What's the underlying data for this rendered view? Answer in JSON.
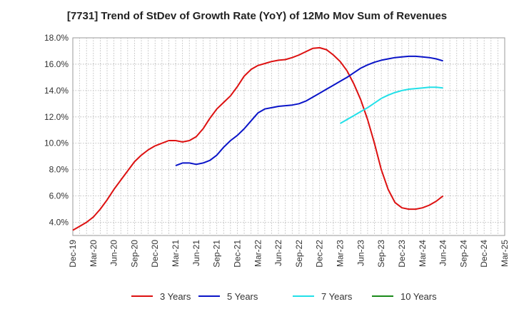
{
  "chart_data": {
    "type": "line",
    "title": "[7731]  Trend of StDev of Growth Rate (YoY) of 12Mo Mov Sum of Revenues",
    "xlabel": "",
    "ylabel": "",
    "ylim": [
      3.0,
      18.0
    ],
    "y_ticks": [
      4.0,
      6.0,
      8.0,
      10.0,
      12.0,
      14.0,
      16.0,
      18.0
    ],
    "y_tick_labels": [
      "4.0%",
      "6.0%",
      "8.0%",
      "10.0%",
      "12.0%",
      "14.0%",
      "16.0%",
      "18.0%"
    ],
    "x_tick_labels": [
      "Dec-19",
      "Mar-20",
      "Jun-20",
      "Sep-20",
      "Dec-20",
      "Mar-21",
      "Jun-21",
      "Sep-21",
      "Dec-21",
      "Mar-22",
      "Jun-22",
      "Sep-22",
      "Dec-22",
      "Mar-23",
      "Jun-23",
      "Sep-23",
      "Dec-23",
      "Mar-24",
      "Jun-24",
      "Sep-24",
      "Dec-24",
      "Mar-25"
    ],
    "grid": true,
    "legend_position": "bottom",
    "series": [
      {
        "name": "3 Years",
        "color": "#dd1111",
        "points": [
          [
            0,
            3.4
          ],
          [
            1,
            3.7
          ],
          [
            2,
            4.0
          ],
          [
            3,
            4.4
          ],
          [
            4,
            5.0
          ],
          [
            5,
            5.7
          ],
          [
            6,
            6.5
          ],
          [
            7,
            7.2
          ],
          [
            8,
            7.9
          ],
          [
            9,
            8.6
          ],
          [
            10,
            9.1
          ],
          [
            11,
            9.5
          ],
          [
            12,
            9.8
          ],
          [
            13,
            10.0
          ],
          [
            14,
            10.2
          ],
          [
            15,
            10.2
          ],
          [
            16,
            10.1
          ],
          [
            17,
            10.2
          ],
          [
            18,
            10.5
          ],
          [
            19,
            11.1
          ],
          [
            20,
            11.9
          ],
          [
            21,
            12.6
          ],
          [
            22,
            13.1
          ],
          [
            23,
            13.6
          ],
          [
            24,
            14.3
          ],
          [
            25,
            15.1
          ],
          [
            26,
            15.6
          ],
          [
            27,
            15.9
          ],
          [
            28,
            16.05
          ],
          [
            29,
            16.2
          ],
          [
            30,
            16.3
          ],
          [
            31,
            16.35
          ],
          [
            32,
            16.5
          ],
          [
            33,
            16.7
          ],
          [
            34,
            16.95
          ],
          [
            35,
            17.2
          ],
          [
            36,
            17.25
          ],
          [
            37,
            17.1
          ],
          [
            38,
            16.7
          ],
          [
            39,
            16.2
          ],
          [
            40,
            15.5
          ],
          [
            41,
            14.5
          ],
          [
            42,
            13.3
          ],
          [
            43,
            11.8
          ],
          [
            44,
            10.0
          ],
          [
            45,
            8.0
          ],
          [
            46,
            6.5
          ],
          [
            47,
            5.5
          ],
          [
            48,
            5.1
          ],
          [
            49,
            5.0
          ],
          [
            50,
            5.0
          ],
          [
            51,
            5.1
          ],
          [
            52,
            5.3
          ],
          [
            53,
            5.6
          ],
          [
            54,
            6.0
          ]
        ]
      },
      {
        "name": "5 Years",
        "color": "#0a14c8",
        "points": [
          [
            15,
            8.3
          ],
          [
            16,
            8.5
          ],
          [
            17,
            8.5
          ],
          [
            18,
            8.4
          ],
          [
            19,
            8.5
          ],
          [
            20,
            8.7
          ],
          [
            21,
            9.1
          ],
          [
            22,
            9.7
          ],
          [
            23,
            10.2
          ],
          [
            24,
            10.6
          ],
          [
            25,
            11.1
          ],
          [
            26,
            11.7
          ],
          [
            27,
            12.3
          ],
          [
            28,
            12.6
          ],
          [
            29,
            12.7
          ],
          [
            30,
            12.8
          ],
          [
            31,
            12.85
          ],
          [
            32,
            12.9
          ],
          [
            33,
            13.0
          ],
          [
            34,
            13.2
          ],
          [
            35,
            13.5
          ],
          [
            36,
            13.8
          ],
          [
            37,
            14.1
          ],
          [
            38,
            14.4
          ],
          [
            39,
            14.7
          ],
          [
            40,
            15.0
          ],
          [
            41,
            15.35
          ],
          [
            42,
            15.7
          ],
          [
            43,
            15.95
          ],
          [
            44,
            16.15
          ],
          [
            45,
            16.3
          ],
          [
            46,
            16.4
          ],
          [
            47,
            16.5
          ],
          [
            48,
            16.55
          ],
          [
            49,
            16.6
          ],
          [
            50,
            16.6
          ],
          [
            51,
            16.55
          ],
          [
            52,
            16.5
          ],
          [
            53,
            16.4
          ],
          [
            54,
            16.25
          ]
        ]
      },
      {
        "name": "7 Years",
        "color": "#22e0e8",
        "points": [
          [
            39,
            11.5
          ],
          [
            40,
            11.8
          ],
          [
            41,
            12.1
          ],
          [
            42,
            12.4
          ],
          [
            43,
            12.7
          ],
          [
            44,
            13.05
          ],
          [
            45,
            13.4
          ],
          [
            46,
            13.65
          ],
          [
            47,
            13.85
          ],
          [
            48,
            14.0
          ],
          [
            49,
            14.1
          ],
          [
            50,
            14.15
          ],
          [
            51,
            14.2
          ],
          [
            52,
            14.25
          ],
          [
            53,
            14.25
          ],
          [
            54,
            14.2
          ]
        ]
      },
      {
        "name": "10 Years",
        "color": "#1a8a1a",
        "points": []
      }
    ]
  }
}
